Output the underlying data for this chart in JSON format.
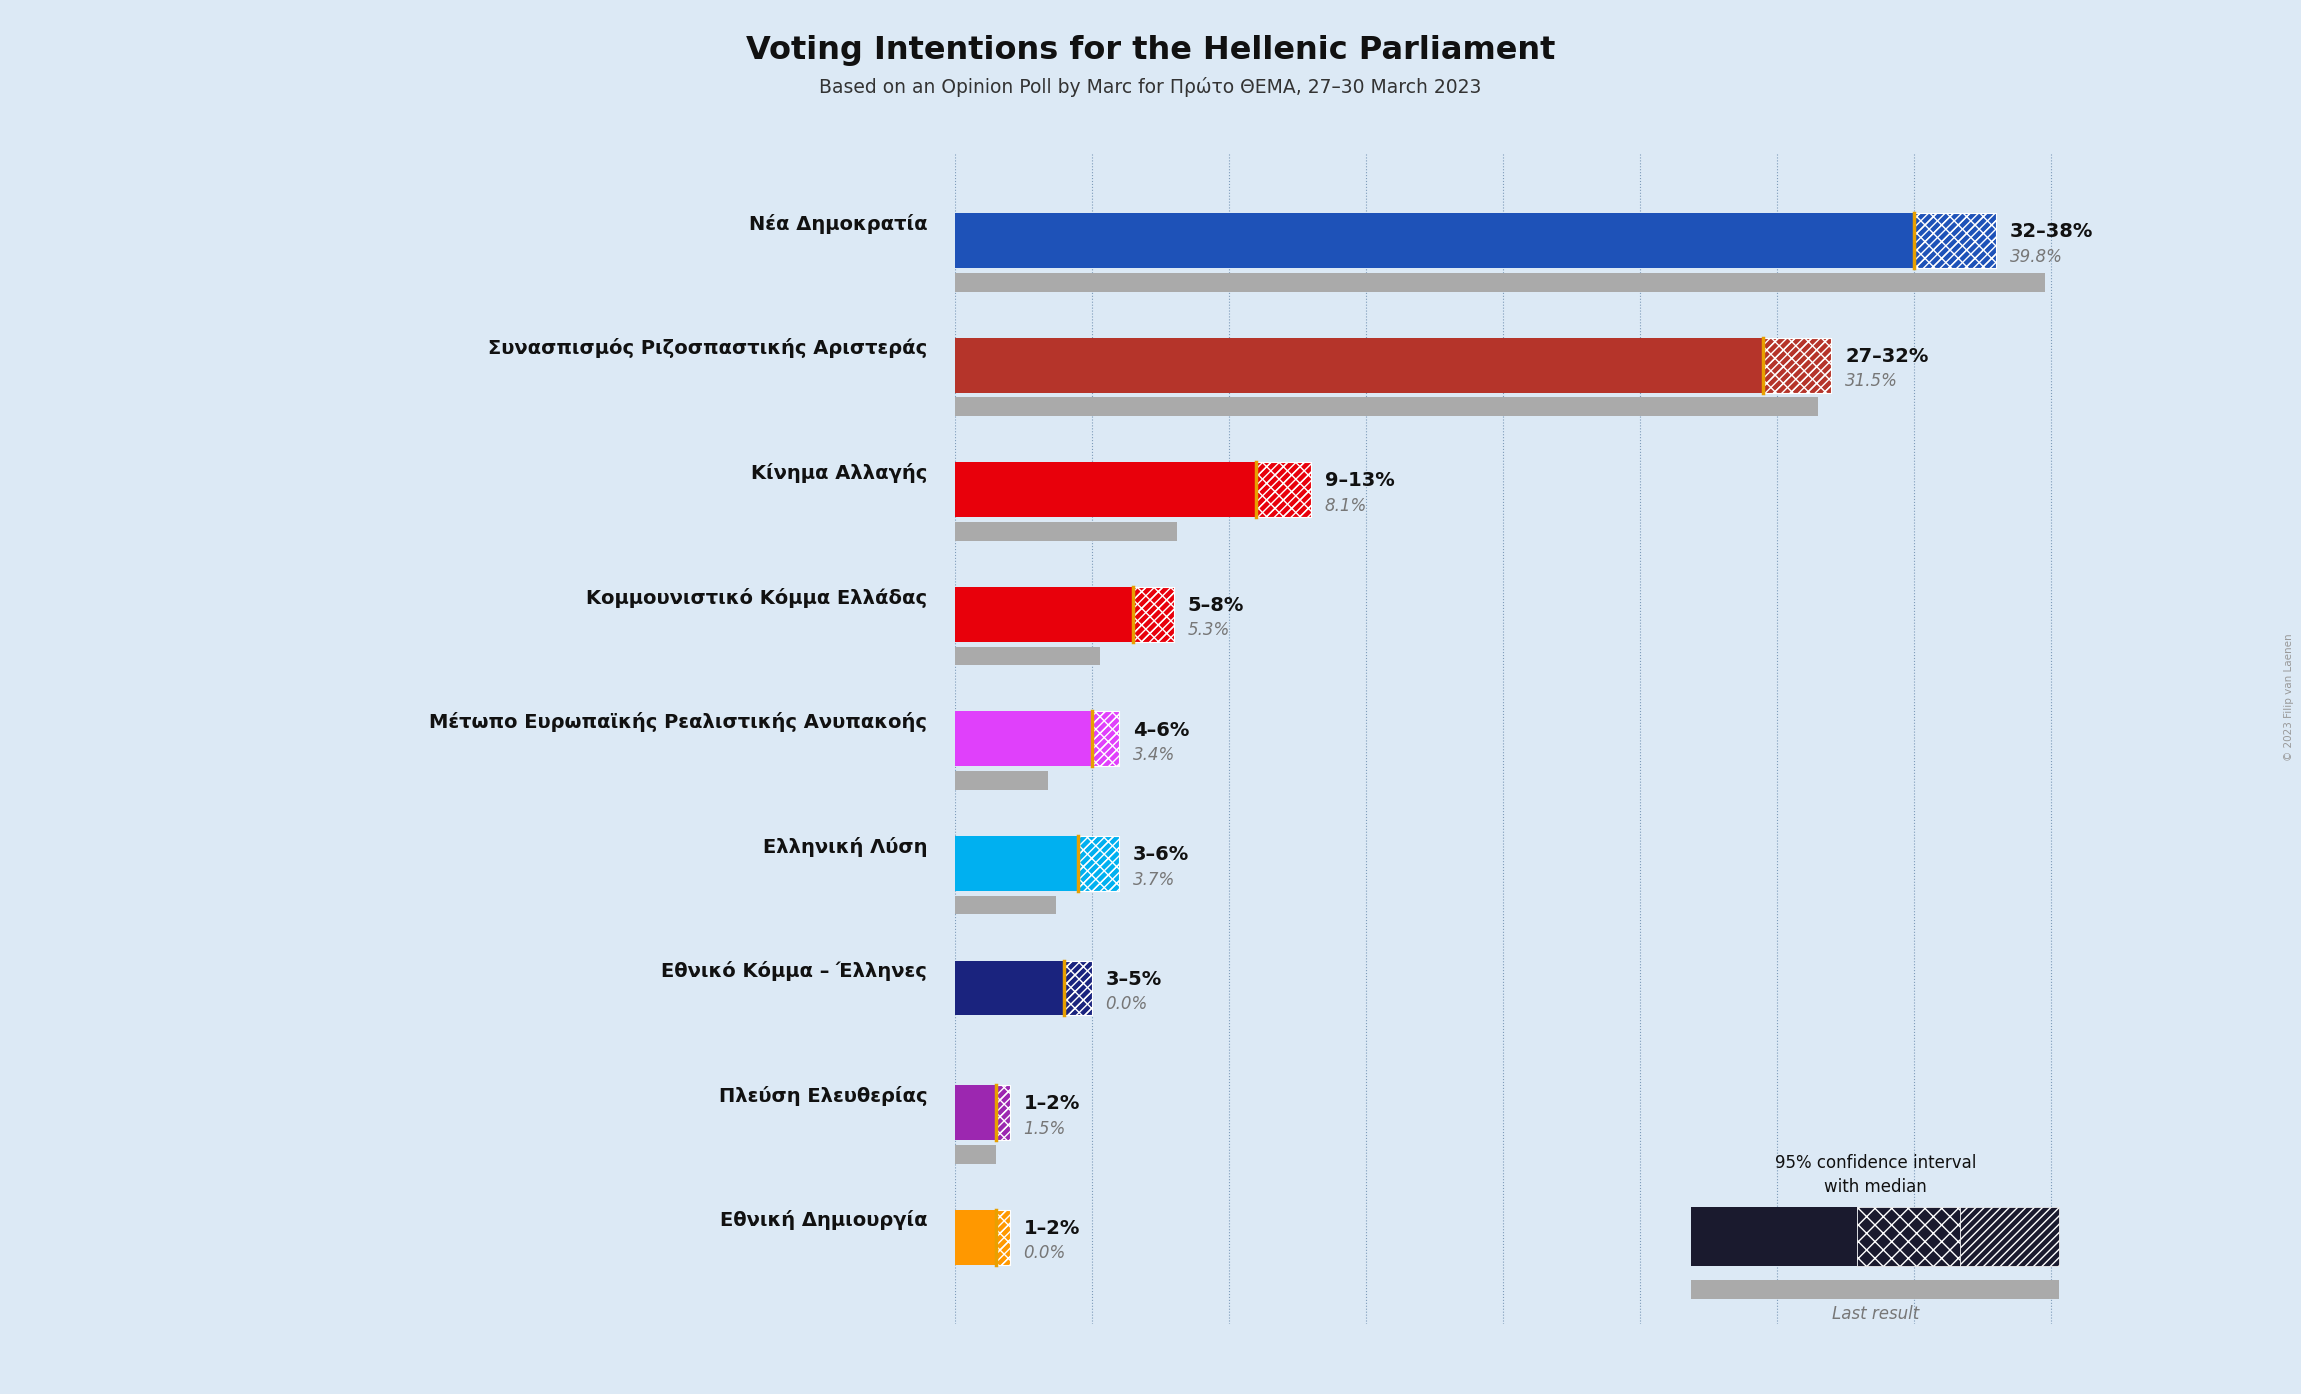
{
  "title": "Voting Intentions for the Hellenic Parliament",
  "subtitle": "Based on an Opinion Poll by Marc for Πρώτο ΘΕΜΑ, 27–30 March 2023",
  "background_color": "#dce9f5",
  "parties": [
    {
      "name": "Νέα Δημοκρατία",
      "low": 32,
      "high": 38,
      "median": 35,
      "last_result": 39.8,
      "color": "#1e52b8",
      "label": "32–38%",
      "label2": "39.8%"
    },
    {
      "name": "Συνασπισμός Ριζοσπαστικής Αριστεράς",
      "low": 27,
      "high": 32,
      "median": 29.5,
      "last_result": 31.5,
      "color": "#b5342a",
      "label": "27–32%",
      "label2": "31.5%"
    },
    {
      "name": "Κίνημα Αλλαγής",
      "low": 9,
      "high": 13,
      "median": 11,
      "last_result": 8.1,
      "color": "#e8000b",
      "label": "9–13%",
      "label2": "8.1%"
    },
    {
      "name": "Κομμουνιστικό Κόμμα Ελλάδας",
      "low": 5,
      "high": 8,
      "median": 6.5,
      "last_result": 5.3,
      "color": "#e8000b",
      "label": "5–8%",
      "label2": "5.3%"
    },
    {
      "name": "Μέτωπο Ευρωπαϊκής Ρεαλιστικής Ανυπακοής",
      "low": 4,
      "high": 6,
      "median": 5,
      "last_result": 3.4,
      "color": "#e040fb",
      "label": "4–6%",
      "label2": "3.4%"
    },
    {
      "name": "Ελληνική Λύση",
      "low": 3,
      "high": 6,
      "median": 4.5,
      "last_result": 3.7,
      "color": "#00b0f0",
      "label": "3–6%",
      "label2": "3.7%"
    },
    {
      "name": "Εθνικό Κόμμα – Έλληνες",
      "low": 3,
      "high": 5,
      "median": 4,
      "last_result": 0.0,
      "color": "#1a237e",
      "label": "3–5%",
      "label2": "0.0%"
    },
    {
      "name": "Πλεύση Ελευθερίας",
      "low": 1,
      "high": 2,
      "median": 1.5,
      "last_result": 1.5,
      "color": "#9c27b0",
      "label": "1–2%",
      "label2": "1.5%"
    },
    {
      "name": "Εθνική Δημιουργία",
      "low": 1,
      "high": 2,
      "median": 1.5,
      "last_result": 0.0,
      "color": "#ff9800",
      "label": "1–2%",
      "label2": "0.0%"
    }
  ],
  "x_max": 42,
  "median_line_color": "#e8a000",
  "last_result_color": "#aaaaaa",
  "label_color": "#111111",
  "label2_color": "#777777",
  "grid_color": "#6688aa",
  "copyright": "© 2023 Filip van Laenen"
}
